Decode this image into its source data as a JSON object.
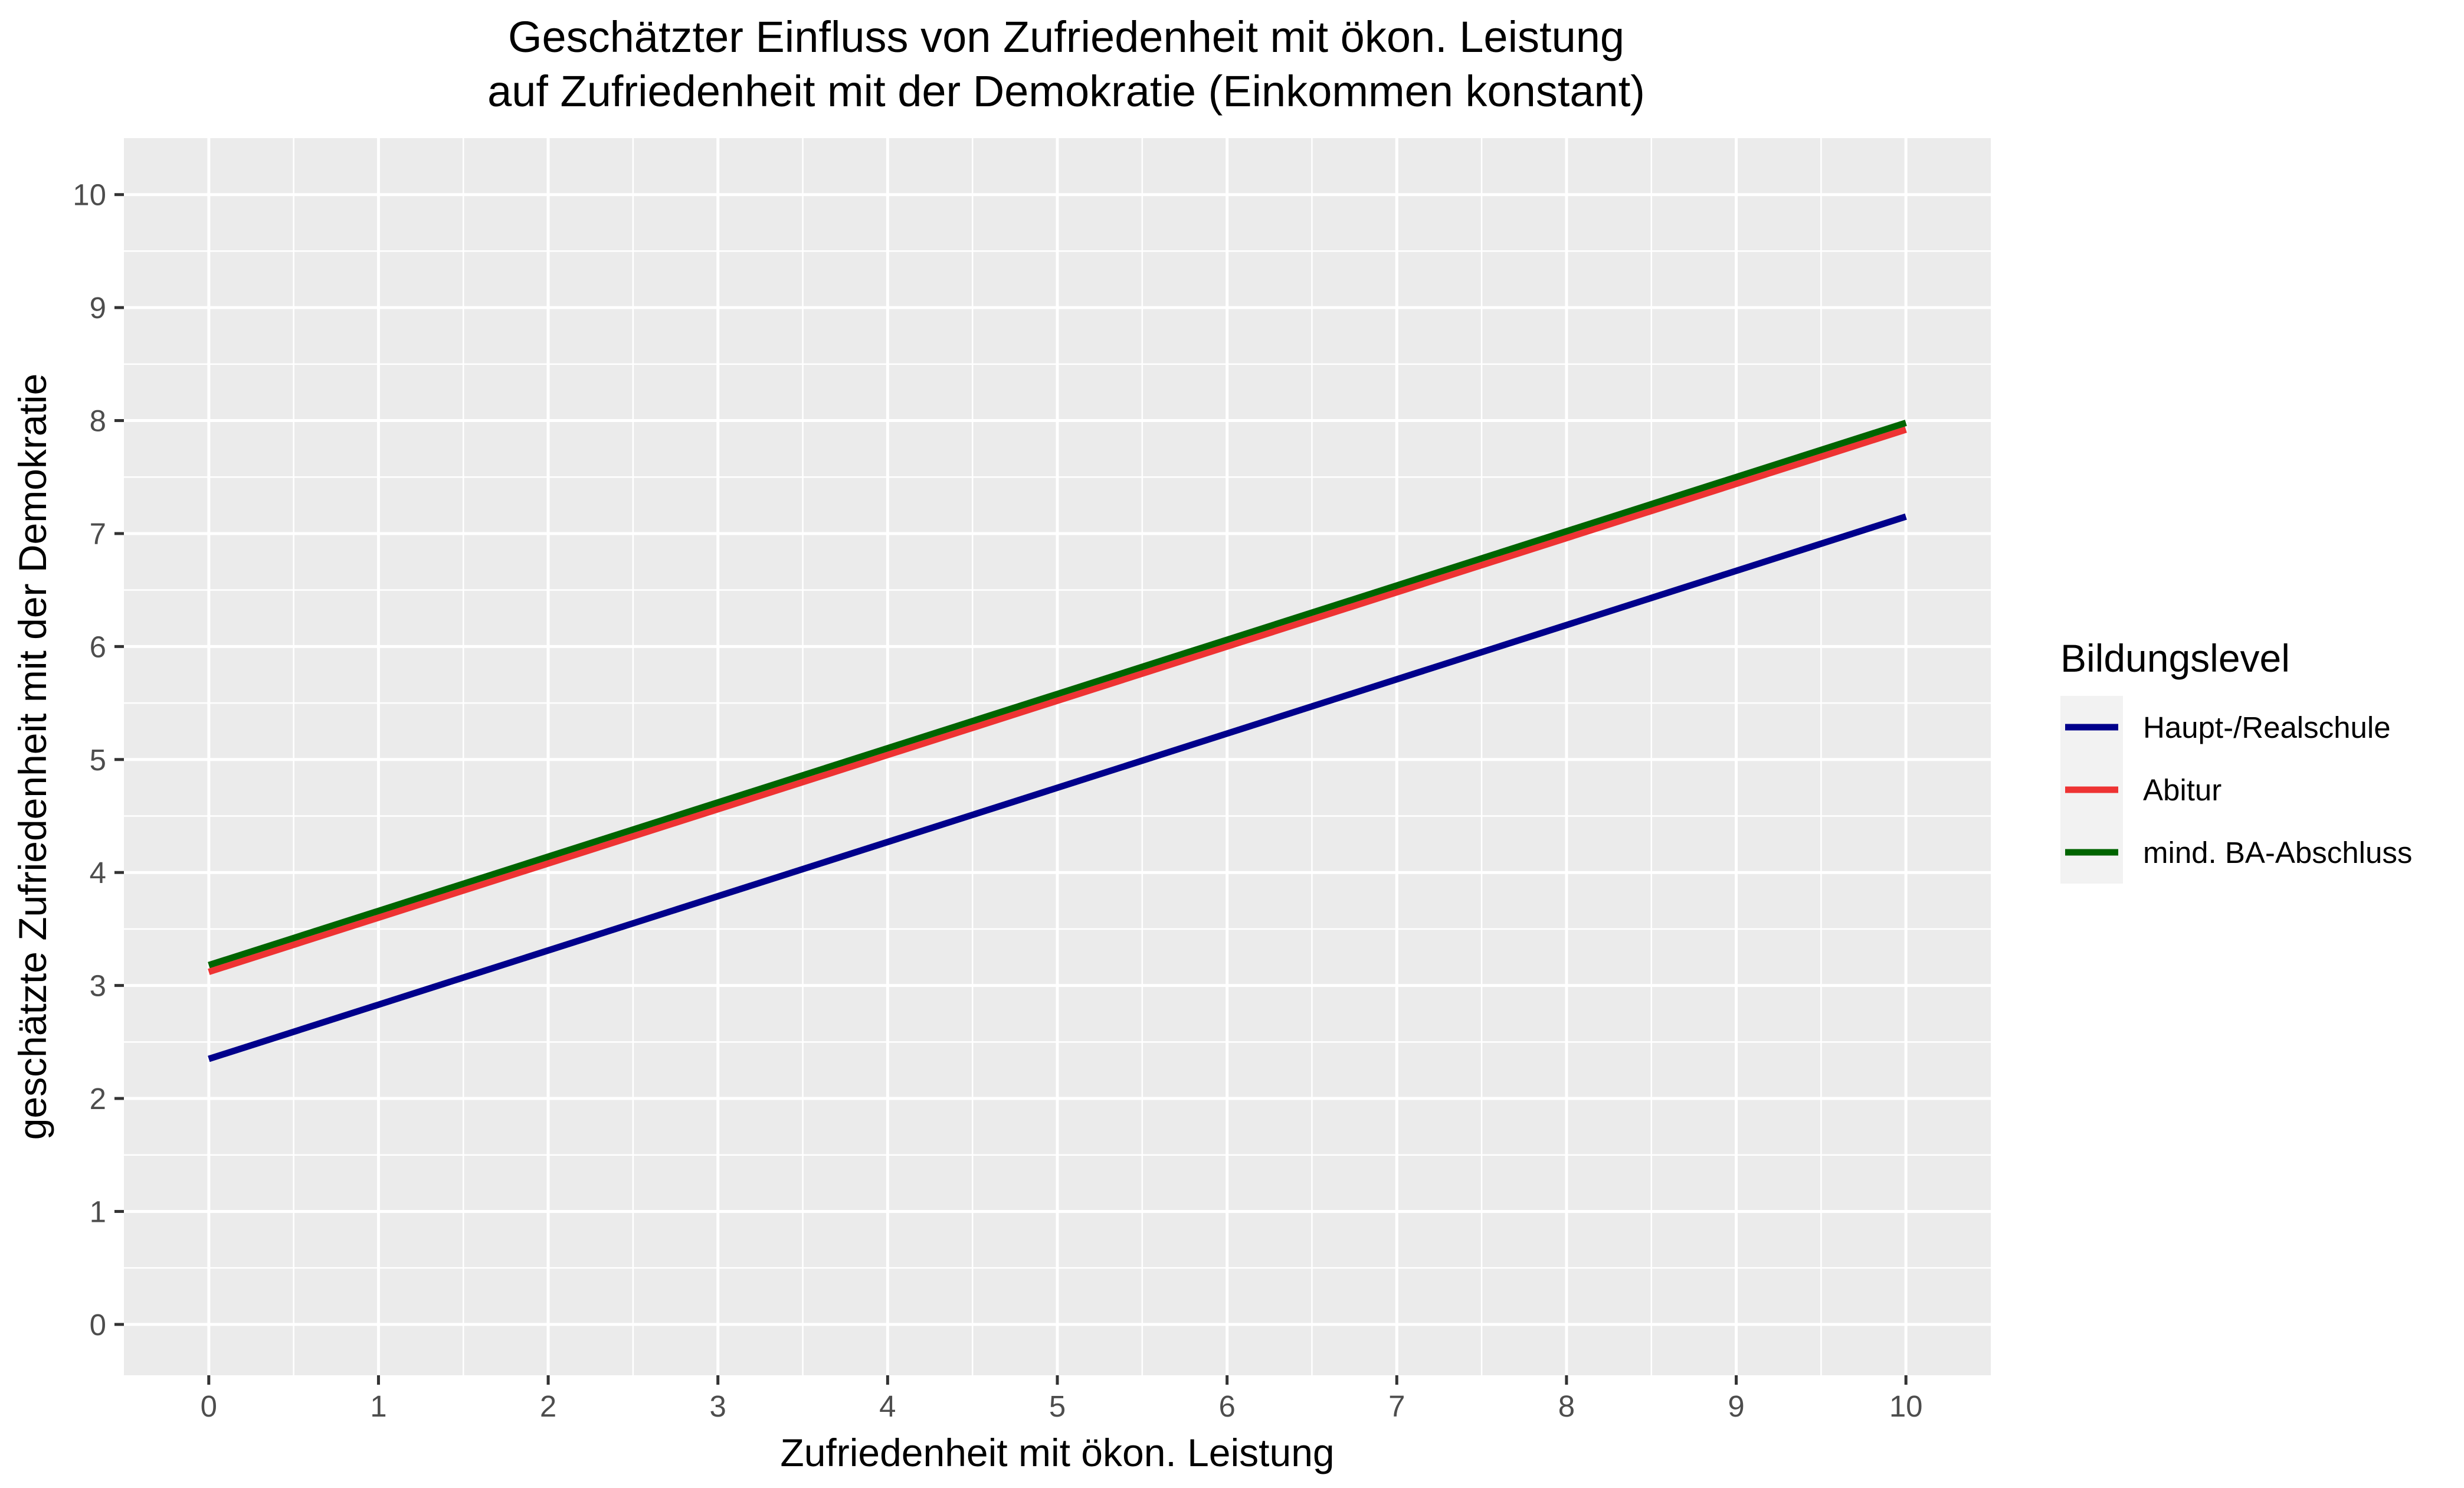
{
  "chart_data": {
    "type": "line",
    "title": [
      "Geschätzter Einfluss von Zufriedenheit mit ökon. Leistung",
      "auf Zufriedenheit mit der Demokratie (Einkommen konstant)"
    ],
    "xlabel": "Zufriedenheit mit ökon. Leistung",
    "ylabel": "geschätzte Zufriedenheit mit der Demokratie",
    "xlim": [
      -0.5,
      10.5
    ],
    "ylim": [
      -0.45,
      10.5
    ],
    "xticks": [
      0,
      1,
      2,
      3,
      4,
      5,
      6,
      7,
      8,
      9,
      10
    ],
    "yticks": [
      0,
      1,
      2,
      3,
      4,
      5,
      6,
      7,
      8,
      9,
      10
    ],
    "grid": true,
    "legend_title": "Bildungslevel",
    "legend_position": "right",
    "series": [
      {
        "name": "Haupt-/Realschule",
        "color": "#00008B",
        "x": [
          0,
          10
        ],
        "y": [
          2.35,
          7.15
        ]
      },
      {
        "name": "Abitur",
        "color": "#EE3333",
        "x": [
          0,
          10
        ],
        "y": [
          3.12,
          7.92
        ]
      },
      {
        "name": "mind. BA-Abschluss",
        "color": "#006400",
        "x": [
          0,
          10
        ],
        "y": [
          3.18,
          7.98
        ]
      }
    ]
  }
}
